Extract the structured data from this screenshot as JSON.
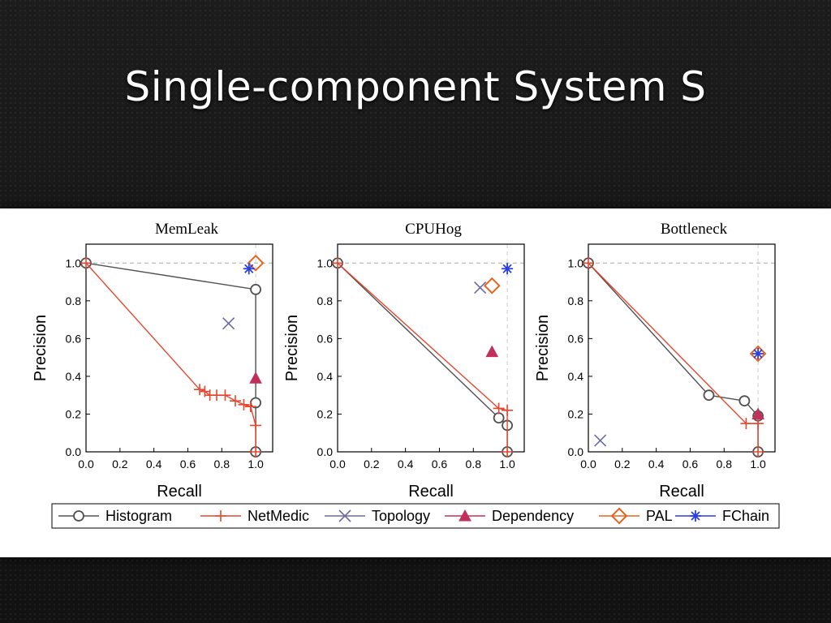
{
  "slide": {
    "title": "Single-component System S"
  },
  "colors": {
    "Histogram": "#505050",
    "NetMedic": "#e8452e",
    "Topology": "#6a6aa8",
    "Dependency": "#c0305a",
    "PAL": "#e8641e",
    "FChain": "#2a3fe0"
  },
  "legend": {
    "position": "bottom",
    "items": [
      {
        "name": "Histogram",
        "marker": "circle"
      },
      {
        "name": "NetMedic",
        "marker": "plus"
      },
      {
        "name": "Topology",
        "marker": "x"
      },
      {
        "name": "Dependency",
        "marker": "triangle"
      },
      {
        "name": "PAL",
        "marker": "diamond"
      },
      {
        "name": "FChain",
        "marker": "asterisk"
      }
    ]
  },
  "chart_data": [
    {
      "type": "line",
      "title": "MemLeak",
      "xlabel": "Recall",
      "ylabel": "Precision",
      "xlim": [
        0,
        1.1
      ],
      "ylim": [
        0,
        1.1
      ],
      "xticks": [
        "0.0",
        "0.2",
        "0.4",
        "0.6",
        "0.8",
        "1.0"
      ],
      "yticks": [
        "0.0",
        "0.2",
        "0.4",
        "0.6",
        "0.8",
        "1.0"
      ],
      "grid": "dashed reference lines at 1.0",
      "series": [
        {
          "name": "Histogram",
          "points": [
            [
              0,
              1.0
            ],
            [
              1.0,
              0.86
            ],
            [
              1.0,
              0.26
            ],
            [
              1.0,
              0.0
            ]
          ]
        },
        {
          "name": "NetMedic",
          "points": [
            [
              0,
              1.0
            ],
            [
              0.67,
              0.33
            ],
            [
              0.7,
              0.32
            ],
            [
              0.73,
              0.3
            ],
            [
              0.77,
              0.3
            ],
            [
              0.82,
              0.3
            ],
            [
              0.88,
              0.27
            ],
            [
              0.93,
              0.25
            ],
            [
              0.97,
              0.24
            ],
            [
              1.0,
              0.14
            ],
            [
              1.0,
              0.0
            ]
          ]
        },
        {
          "name": "Topology",
          "points": [
            [
              0.84,
              0.68
            ]
          ]
        },
        {
          "name": "Dependency",
          "points": [
            [
              1.0,
              0.39
            ]
          ]
        },
        {
          "name": "PAL",
          "points": [
            [
              1.0,
              1.0
            ]
          ]
        },
        {
          "name": "FChain",
          "points": [
            [
              0.96,
              0.97
            ]
          ]
        }
      ]
    },
    {
      "type": "line",
      "title": "CPUHog",
      "xlabel": "Recall",
      "ylabel": "Precision",
      "xlim": [
        0,
        1.1
      ],
      "ylim": [
        0,
        1.1
      ],
      "xticks": [
        "0.0",
        "0.2",
        "0.4",
        "0.6",
        "0.8",
        "1.0"
      ],
      "yticks": [
        "0.0",
        "0.2",
        "0.4",
        "0.6",
        "0.8",
        "1.0"
      ],
      "grid": "dashed reference lines at 1.0",
      "series": [
        {
          "name": "Histogram",
          "points": [
            [
              0,
              1.0
            ],
            [
              0.95,
              0.18
            ],
            [
              1.0,
              0.14
            ],
            [
              1.0,
              0.0
            ]
          ]
        },
        {
          "name": "NetMedic",
          "points": [
            [
              0,
              1.0
            ],
            [
              0.95,
              0.23
            ],
            [
              1.0,
              0.22
            ],
            [
              1.0,
              0.0
            ]
          ]
        },
        {
          "name": "Topology",
          "points": [
            [
              0.84,
              0.87
            ]
          ]
        },
        {
          "name": "Dependency",
          "points": [
            [
              0.91,
              0.53
            ]
          ]
        },
        {
          "name": "PAL",
          "points": [
            [
              0.91,
              0.88
            ]
          ]
        },
        {
          "name": "FChain",
          "points": [
            [
              1.0,
              0.97
            ]
          ]
        }
      ]
    },
    {
      "type": "line",
      "title": "Bottleneck",
      "xlabel": "Recall",
      "ylabel": "Precision",
      "xlim": [
        0,
        1.1
      ],
      "ylim": [
        0,
        1.1
      ],
      "xticks": [
        "0.0",
        "0.2",
        "0.4",
        "0.6",
        "0.8",
        "1.0"
      ],
      "yticks": [
        "0.0",
        "0.2",
        "0.4",
        "0.6",
        "0.8",
        "1.0"
      ],
      "grid": "dashed reference lines at 1.0",
      "series": [
        {
          "name": "Histogram",
          "points": [
            [
              0,
              1.0
            ],
            [
              0.71,
              0.3
            ],
            [
              0.92,
              0.27
            ],
            [
              1.0,
              0.19
            ],
            [
              1.0,
              0.0
            ]
          ]
        },
        {
          "name": "NetMedic",
          "points": [
            [
              0,
              1.0
            ],
            [
              0.93,
              0.15
            ],
            [
              1.0,
              0.15
            ],
            [
              1.0,
              0.0
            ]
          ]
        },
        {
          "name": "Topology",
          "points": [
            [
              0.07,
              0.06
            ]
          ]
        },
        {
          "name": "Dependency",
          "points": [
            [
              1.0,
              0.2
            ]
          ]
        },
        {
          "name": "PAL",
          "points": [
            [
              1.0,
              0.52
            ]
          ]
        },
        {
          "name": "FChain",
          "points": [
            [
              1.0,
              0.52
            ]
          ]
        }
      ]
    }
  ]
}
